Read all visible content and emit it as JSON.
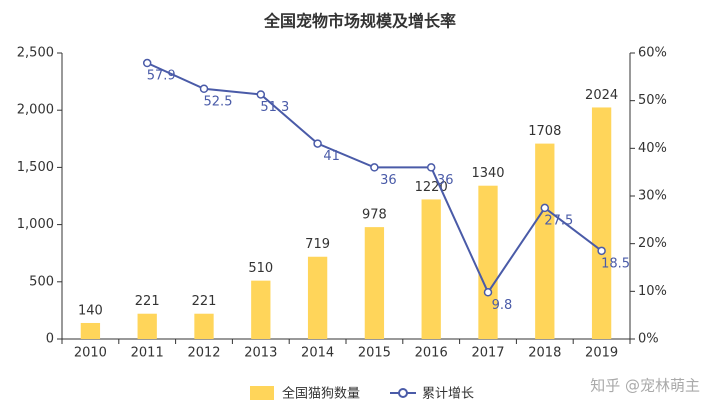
{
  "chart_data": {
    "type": "bar-line",
    "title": "全国宠物市场规模及增长率",
    "categories": [
      "2010",
      "2011",
      "2012",
      "2013",
      "2014",
      "2015",
      "2016",
      "2017",
      "2018",
      "2019"
    ],
    "series": [
      {
        "name": "全国猫狗数量",
        "type": "bar",
        "color": "#ffd55a",
        "values": [
          140,
          221,
          221,
          510,
          719,
          978,
          1220,
          1340,
          1708,
          2024
        ]
      },
      {
        "name": "累计增长",
        "type": "line",
        "axis": "y2",
        "color": "#4a5ba8",
        "values": [
          null,
          57.9,
          52.5,
          51.3,
          41,
          36,
          36,
          9.8,
          27.5,
          18.5
        ]
      }
    ],
    "ylim": [
      0,
      2500
    ],
    "yticks": [
      0,
      500,
      {
        "value": 1000,
        "label": "1,000"
      },
      {
        "value": 1500,
        "label": "1,500"
      },
      {
        "value": 2000,
        "label": "2,000"
      },
      {
        "value": 2500,
        "label": "2,500"
      }
    ],
    "y2lim": [
      0,
      60
    ],
    "y2ticks": [
      {
        "value": 0,
        "label": "0%"
      },
      {
        "value": 10,
        "label": "10%"
      },
      {
        "value": 20,
        "label": "20%"
      },
      {
        "value": 30,
        "label": "30%"
      },
      {
        "value": 40,
        "label": "40%"
      },
      {
        "value": 50,
        "label": "50%"
      },
      {
        "value": 60,
        "label": "60%"
      }
    ],
    "watermark": "知乎 @宠林萌主"
  }
}
